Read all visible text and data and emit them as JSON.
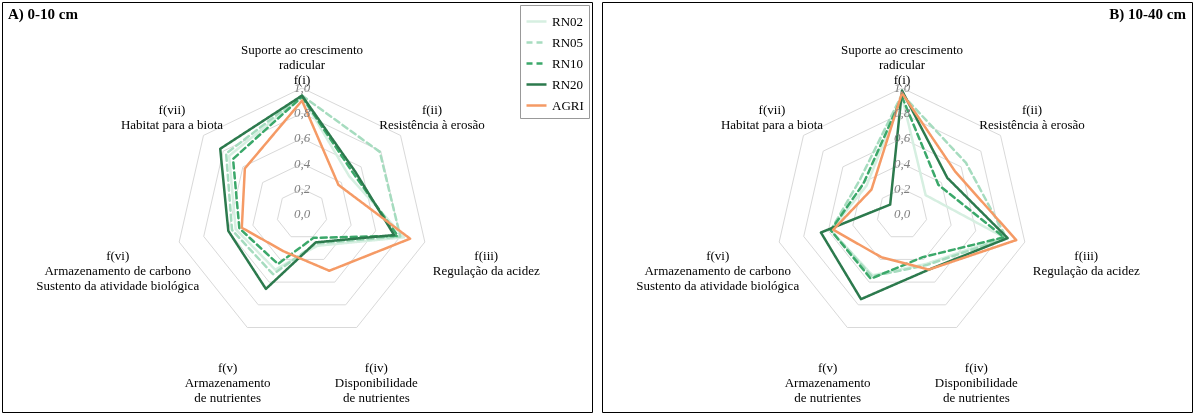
{
  "chart_data": [
    {
      "type": "radar",
      "title": "A) 0-10 cm",
      "categories": [
        "Suporte ao crescimento\nradicular\nf(i)",
        "f(ii)\nResistência à erosão",
        "f(iii)\nRegulação da acidez",
        "f(iv)\nDisponibilidade\nde nutrientes",
        "f(v)\nArmazenamento\nde nutrientes",
        "f(vi)\nArmazenamento de carbono\nSustento da atividade biológica",
        "f(vii)\nHabitat para a biota"
      ],
      "ylim": [
        0,
        1
      ],
      "yticks": [
        {
          "value": 0,
          "label": "0,0"
        },
        {
          "value": 0.2,
          "label": "0,2"
        },
        {
          "value": 0.4,
          "label": "0,4"
        },
        {
          "value": 0.6,
          "label": "0,6"
        },
        {
          "value": 0.8,
          "label": "0,8"
        },
        {
          "value": 1,
          "label": "1,0"
        }
      ],
      "grid": true,
      "legend": "top right",
      "series": [
        {
          "name": "RN02",
          "color": "#d6efe1",
          "line_style": "solid",
          "values": [
            0.93,
            0.48,
            0.83,
            0.28,
            0.49,
            0.54,
            0.74
          ]
        },
        {
          "name": "RN05",
          "color": "#a6dcbf",
          "line_style": "dashed",
          "values": [
            0.94,
            0.79,
            0.8,
            0.26,
            0.53,
            0.57,
            0.77
          ]
        },
        {
          "name": "RN10",
          "color": "#3ba86a",
          "line_style": "dashed",
          "values": [
            0.93,
            0.52,
            0.78,
            0.21,
            0.44,
            0.51,
            0.7
          ]
        },
        {
          "name": "RN20",
          "color": "#2c7a4d",
          "line_style": "solid",
          "values": [
            0.94,
            0.54,
            0.75,
            0.25,
            0.66,
            0.6,
            0.83
          ]
        },
        {
          "name": "AGRI",
          "color": "#f59a65",
          "line_style": "solid",
          "values": [
            0.9,
            0.37,
            0.88,
            0.5,
            0.33,
            0.49,
            0.58
          ]
        }
      ]
    },
    {
      "type": "radar",
      "title": "B) 10-40 cm",
      "categories": [
        "Suporte ao crescimento\nradicular\nf(i)",
        "f(ii)\nResistência à erosão",
        "f(iii)\nRegulação da acidez",
        "f(iv)\nDisponibilidade\nde nutrientes",
        "f(v)\nArmazenamento\nde nutrientes",
        "f(vi)\nArmazenamento de carbono\nSustento da atividade biológica",
        "f(vii)\nHabitat para a biota"
      ],
      "ylim": [
        0,
        1
      ],
      "yticks": [
        {
          "value": 0,
          "label": "0,0"
        },
        {
          "value": 0.2,
          "label": "0,2"
        },
        {
          "value": 0.4,
          "label": "0,4"
        },
        {
          "value": 0.6,
          "label": "0,6"
        },
        {
          "value": 0.8,
          "label": "0,8"
        },
        {
          "value": 1,
          "label": "1,0"
        }
      ],
      "grid": true,
      "series": [
        {
          "color": "#d6efe1",
          "line_style": "solid",
          "values": [
            0.93,
            0.24,
            0.83,
            0.44,
            0.54,
            0.58,
            0.36
          ]
        },
        {
          "color": "#a6dcbf",
          "line_style": "dashed",
          "values": [
            0.95,
            0.65,
            0.85,
            0.45,
            0.55,
            0.58,
            0.43
          ]
        },
        {
          "color": "#3ba86a",
          "line_style": "dashed",
          "values": [
            0.93,
            0.37,
            0.83,
            0.38,
            0.57,
            0.58,
            0.39
          ]
        },
        {
          "color": "#2c7a4d",
          "line_style": "solid",
          "values": [
            0.98,
            0.46,
            0.86,
            0.49,
            0.75,
            0.66,
            0.12
          ]
        },
        {
          "color": "#f59a65",
          "line_style": "solid",
          "values": [
            0.96,
            0.54,
            0.93,
            0.49,
            0.38,
            0.56,
            0.31
          ]
        }
      ]
    }
  ]
}
